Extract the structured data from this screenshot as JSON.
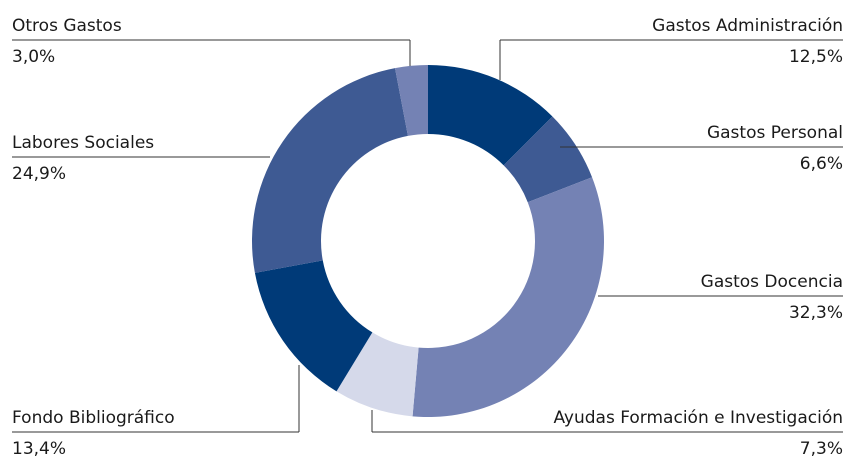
{
  "chart_data": {
    "type": "donut",
    "categories": [
      "Gastos Administración",
      "Gastos Personal",
      "Gastos Docencia",
      "Ayudas Formación e Investigación",
      "Fondo Bibliográfico",
      "Labores Sociales",
      "Otros Gastos"
    ],
    "values": [
      12.5,
      6.6,
      32.3,
      7.3,
      13.4,
      24.9,
      3.0
    ],
    "value_labels": [
      "12,5%",
      "6,6%",
      "32,3%",
      "7,3%",
      "13,4%",
      "24,9%",
      "3,0%"
    ],
    "colors": [
      "#003a78",
      "#3e5a93",
      "#7482b4",
      "#d5d9ea",
      "#003a78",
      "#3e5a93",
      "#7482b4"
    ]
  }
}
